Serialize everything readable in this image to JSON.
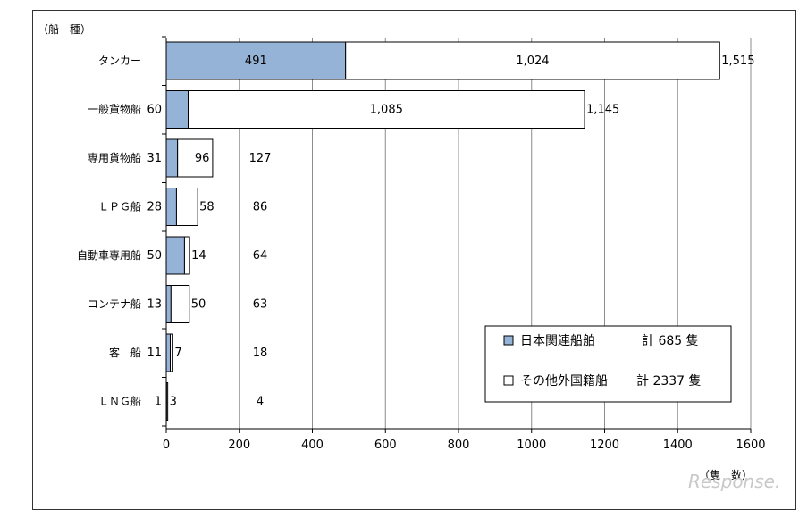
{
  "chart_data": {
    "type": "bar",
    "stacked": true,
    "orientation": "horizontal",
    "ylabel": "（船　種）",
    "xlabel": "（隻　数）",
    "xlim": [
      0,
      1600
    ],
    "xticks": [
      0,
      200,
      400,
      600,
      800,
      1000,
      1200,
      1400,
      1600
    ],
    "grid": true,
    "legend_position": "bottom-right",
    "categories": [
      "タンカー",
      "一般貨物船",
      "専用貨物船",
      "ＬＰＧ船",
      "自動車専用船",
      "コンテナ船",
      "客　船",
      "ＬＮＧ船"
    ],
    "series": [
      {
        "name": "日本関連船舶",
        "legend_total": "計 685 隻",
        "color": "#95b3d7",
        "values": [
          491,
          60,
          31,
          28,
          50,
          13,
          11,
          1
        ]
      },
      {
        "name": "その他外国籍船",
        "legend_total": "計 2337 隻",
        "color": "#ffffff",
        "values": [
          1024,
          1085,
          96,
          58,
          14,
          50,
          7,
          3
        ]
      }
    ],
    "totals": [
      1515,
      1145,
      127,
      86,
      64,
      63,
      18,
      4
    ],
    "value_labels_series1": [
      "491",
      "60",
      "31",
      "28",
      "50",
      "13",
      "11",
      "1"
    ],
    "value_labels_series2": [
      "1,024",
      "1,085",
      "96",
      "58",
      "14",
      "50",
      "7",
      "3"
    ],
    "total_labels": [
      "1,515",
      "1,145",
      "127",
      "86",
      "64",
      "63",
      "18",
      "4"
    ]
  },
  "watermark": "Response."
}
